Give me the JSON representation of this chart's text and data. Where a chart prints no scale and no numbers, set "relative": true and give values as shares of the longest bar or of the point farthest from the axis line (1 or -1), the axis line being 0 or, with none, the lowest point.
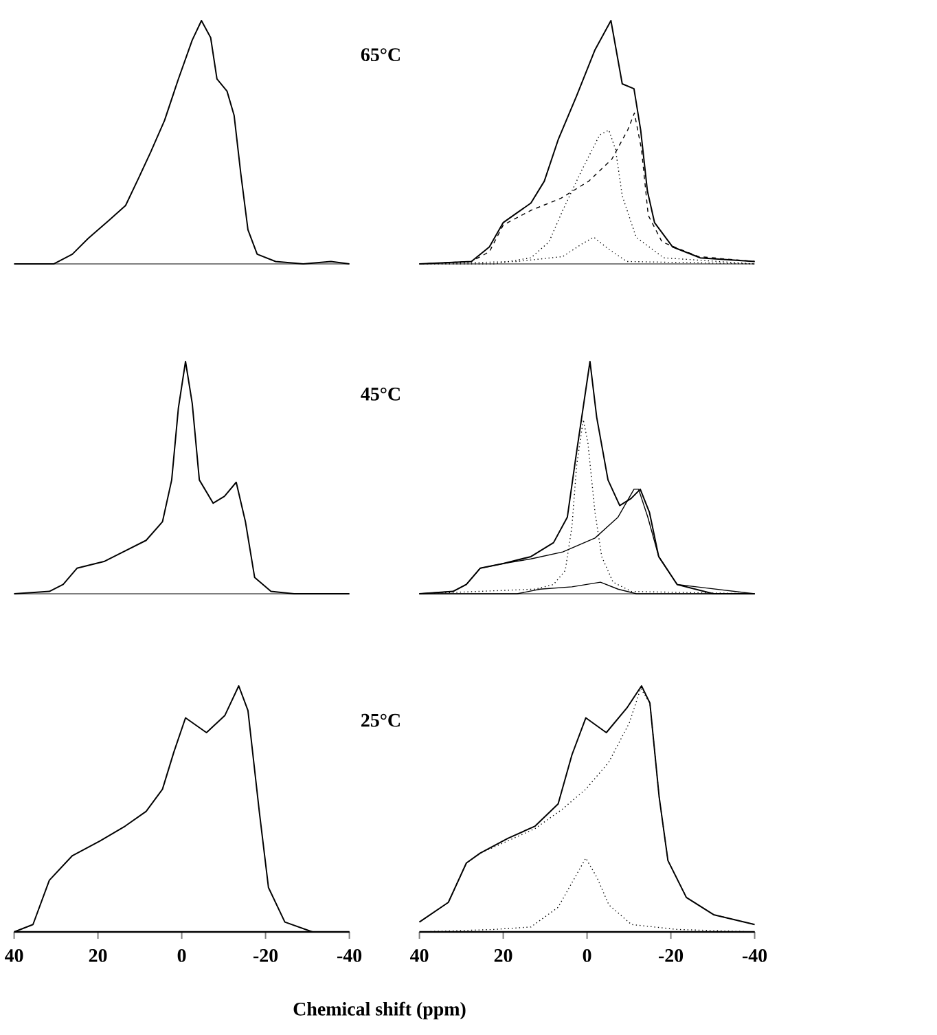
{
  "chart_data": [
    {
      "type": "line",
      "relative": true,
      "xlim": [
        40,
        -40
      ],
      "xticks": [
        40,
        20,
        0,
        -20,
        -40
      ],
      "tick_labels": false,
      "series": [
        {
          "color": "#000000",
          "line_style": "solid",
          "x": [
            40,
            30.5,
            26.1,
            22.3,
            17.3,
            13.4,
            10.1,
            7.4,
            4.1,
            0.8,
            -2.5,
            -4.7,
            -6.9,
            -8.4,
            -10.8,
            -12.5,
            -14.1,
            -15.8,
            -18.0,
            -22.4,
            -29.0,
            -35.6,
            -40
          ],
          "values": [
            0,
            0,
            0.04,
            0.105,
            0.18,
            0.24,
            0.36,
            0.46,
            0.59,
            0.76,
            0.92,
            1.0,
            0.93,
            0.76,
            0.71,
            0.61,
            0.37,
            0.14,
            0.04,
            0.01,
            0,
            0.01,
            0
          ]
        }
      ]
    },
    {
      "type": "line",
      "relative": true,
      "title": "65°C",
      "xlim": [
        40,
        -40
      ],
      "xticks": [
        40,
        20,
        0,
        -20,
        -40
      ],
      "tick_labels": false,
      "series": [
        {
          "color": "#000000",
          "line_style": "solid",
          "x": [
            40,
            27.6,
            23.3,
            20.0,
            16.7,
            13.4,
            10.2,
            6.9,
            2.5,
            -1.9,
            -5.7,
            -8.4,
            -11.2,
            -12.8,
            -14.4,
            -16.1,
            -20.4,
            -27.0,
            -40
          ],
          "values": [
            0,
            0.01,
            0.07,
            0.17,
            0.21,
            0.25,
            0.34,
            0.51,
            0.69,
            0.88,
            1.0,
            0.74,
            0.72,
            0.55,
            0.3,
            0.17,
            0.07,
            0.025,
            0.01
          ]
        },
        {
          "color": "#000000",
          "line_style": "dashed",
          "x": [
            40,
            27.6,
            23.3,
            20.0,
            13.4,
            6.2,
            -0.4,
            -5.9,
            -9.7,
            -11.3,
            -13.0,
            -14.6,
            -17.9,
            -26.6,
            -40
          ],
          "values": [
            0,
            0.01,
            0.05,
            0.16,
            0.22,
            0.27,
            0.34,
            0.43,
            0.55,
            0.62,
            0.47,
            0.2,
            0.09,
            0.03,
            0.01
          ]
        },
        {
          "color": "#000000",
          "line_style": "dotted",
          "x": [
            40,
            22.2,
            13.4,
            9.1,
            5.8,
            1.4,
            -3.0,
            -5.2,
            -6.8,
            -8.4,
            -11.7,
            -18.3,
            -40
          ],
          "values": [
            0,
            0,
            0.025,
            0.09,
            0.22,
            0.38,
            0.53,
            0.55,
            0.47,
            0.28,
            0.11,
            0.025,
            0
          ]
        },
        {
          "color": "#000000",
          "line_style": "dotted",
          "x": [
            40,
            16.7,
            5.8,
            1.4,
            -1.6,
            -5.2,
            -9.5,
            -40
          ],
          "values": [
            0,
            0.01,
            0.03,
            0.08,
            0.11,
            0.06,
            0.01,
            0
          ]
        }
      ]
    },
    {
      "type": "line",
      "relative": true,
      "xlim": [
        40,
        -40
      ],
      "xticks": [
        40,
        20,
        0,
        -20,
        -40
      ],
      "tick_labels": false,
      "series": [
        {
          "color": "#000000",
          "line_style": "solid",
          "x": [
            40,
            31.6,
            28.3,
            25.0,
            18.4,
            14.0,
            8.5,
            4.6,
            2.4,
            0.8,
            -0.9,
            -2.5,
            -4.2,
            -7.5,
            -10.2,
            -13.0,
            -15.2,
            -17.4,
            -21.3,
            -26.8,
            -40
          ],
          "values": [
            0,
            0.01,
            0.04,
            0.11,
            0.14,
            0.18,
            0.23,
            0.31,
            0.49,
            0.8,
            1.0,
            0.82,
            0.49,
            0.39,
            0.42,
            0.48,
            0.31,
            0.07,
            0.01,
            0,
            0
          ]
        }
      ]
    },
    {
      "type": "line",
      "relative": true,
      "title": "45°C",
      "xlim": [
        40,
        -40
      ],
      "xticks": [
        40,
        20,
        0,
        -20,
        -40
      ],
      "tick_labels": false,
      "series": [
        {
          "color": "#000000",
          "line_style": "solid",
          "x": [
            40,
            32.0,
            28.8,
            25.5,
            20.0,
            13.4,
            8.0,
            4.7,
            2.5,
            -0.7,
            -2.3,
            -5.0,
            -7.8,
            -10.5,
            -12.7,
            -14.9,
            -17.1,
            -21.5,
            -30.2,
            -40
          ],
          "values": [
            0,
            0.01,
            0.04,
            0.11,
            0.13,
            0.16,
            0.22,
            0.33,
            0.61,
            1.0,
            0.76,
            0.49,
            0.38,
            0.41,
            0.45,
            0.35,
            0.16,
            0.04,
            0,
            0
          ]
        },
        {
          "color": "#000000",
          "line_style": "solid",
          "x": [
            40,
            32.0,
            28.8,
            25.5,
            20.0,
            13.4,
            5.8,
            -1.9,
            -7.4,
            -11.2,
            -12.3,
            -14.5,
            -17.1,
            -21.5,
            -40
          ],
          "values": [
            0,
            0.01,
            0.04,
            0.11,
            0.13,
            0.15,
            0.18,
            0.24,
            0.33,
            0.45,
            0.45,
            0.33,
            0.16,
            0.04,
            0
          ]
        },
        {
          "color": "#000000",
          "line_style": "dotted",
          "x": [
            40,
            12.4,
            8.0,
            5.2,
            3.6,
            2.5,
            0.9,
            -0.2,
            -1.9,
            -3.5,
            -6.2,
            -10.6,
            -40
          ],
          "values": [
            0,
            0.02,
            0.04,
            0.1,
            0.29,
            0.55,
            0.75,
            0.65,
            0.35,
            0.16,
            0.05,
            0.01,
            0
          ]
        },
        {
          "color": "#000000",
          "line_style": "solid",
          "x": [
            40,
            16.7,
            11.2,
            3.6,
            -3.2,
            -7.4,
            -11.8,
            -40
          ],
          "values": [
            0,
            0,
            0.02,
            0.03,
            0.05,
            0.02,
            0,
            0
          ]
        }
      ]
    },
    {
      "type": "line",
      "relative": true,
      "xlim": [
        40,
        -40
      ],
      "xticks": [
        40,
        20,
        0,
        -20,
        -40
      ],
      "tick_labels": "x",
      "series": [
        {
          "color": "#000000",
          "line_style": "solid",
          "x": [
            40,
            35.5,
            31.6,
            26.1,
            19.5,
            13.5,
            8.5,
            4.6,
            1.9,
            -0.9,
            -5.9,
            -10.3,
            -13.6,
            -15.8,
            -18.5,
            -20.7,
            -24.6,
            -31.2,
            -40
          ],
          "values": [
            0,
            0.03,
            0.21,
            0.31,
            0.37,
            0.43,
            0.49,
            0.58,
            0.73,
            0.87,
            0.81,
            0.88,
            1.0,
            0.9,
            0.49,
            0.18,
            0.04,
            0,
            0
          ]
        }
      ]
    },
    {
      "type": "line",
      "relative": true,
      "title": "25°C",
      "xlabel": "Chemical shift (ppm)",
      "xlim": [
        40,
        -40
      ],
      "xticks": [
        40,
        20,
        0,
        -20,
        -40
      ],
      "tick_labels": "x",
      "series": [
        {
          "color": "#000000",
          "line_style": "solid",
          "x": [
            40,
            33.1,
            28.8,
            25.5,
            18.9,
            12.4,
            6.9,
            3.6,
            0.3,
            -4.6,
            -9.5,
            -13.0,
            -15.0,
            -17.2,
            -19.3,
            -23.7,
            -30.2,
            -40
          ],
          "values": [
            0.04,
            0.12,
            0.28,
            0.32,
            0.38,
            0.43,
            0.52,
            0.72,
            0.87,
            0.81,
            0.91,
            1.0,
            0.93,
            0.55,
            0.29,
            0.14,
            0.07,
            0.03
          ]
        },
        {
          "color": "#000000",
          "line_style": "dotted",
          "x": [
            40,
            33.1,
            28.8,
            25.5,
            18.9,
            12.4,
            5.8,
            0.3,
            -5.2,
            -10.1,
            -12.8,
            -15.0,
            -17.2,
            -19.3,
            -23.7,
            -30.2,
            -40
          ],
          "values": [
            0.04,
            0.12,
            0.28,
            0.32,
            0.37,
            0.42,
            0.5,
            0.58,
            0.69,
            0.85,
            0.99,
            0.93,
            0.55,
            0.29,
            0.14,
            0.07,
            0.03
          ]
        },
        {
          "color": "#000000",
          "line_style": "dotted",
          "x": [
            40,
            22.2,
            13.4,
            6.9,
            3.6,
            0.3,
            -2.4,
            -5.2,
            -10.6,
            -21.5,
            -40
          ],
          "values": [
            0,
            0.01,
            0.02,
            0.1,
            0.2,
            0.3,
            0.22,
            0.11,
            0.03,
            0.01,
            0
          ]
        }
      ]
    }
  ]
}
